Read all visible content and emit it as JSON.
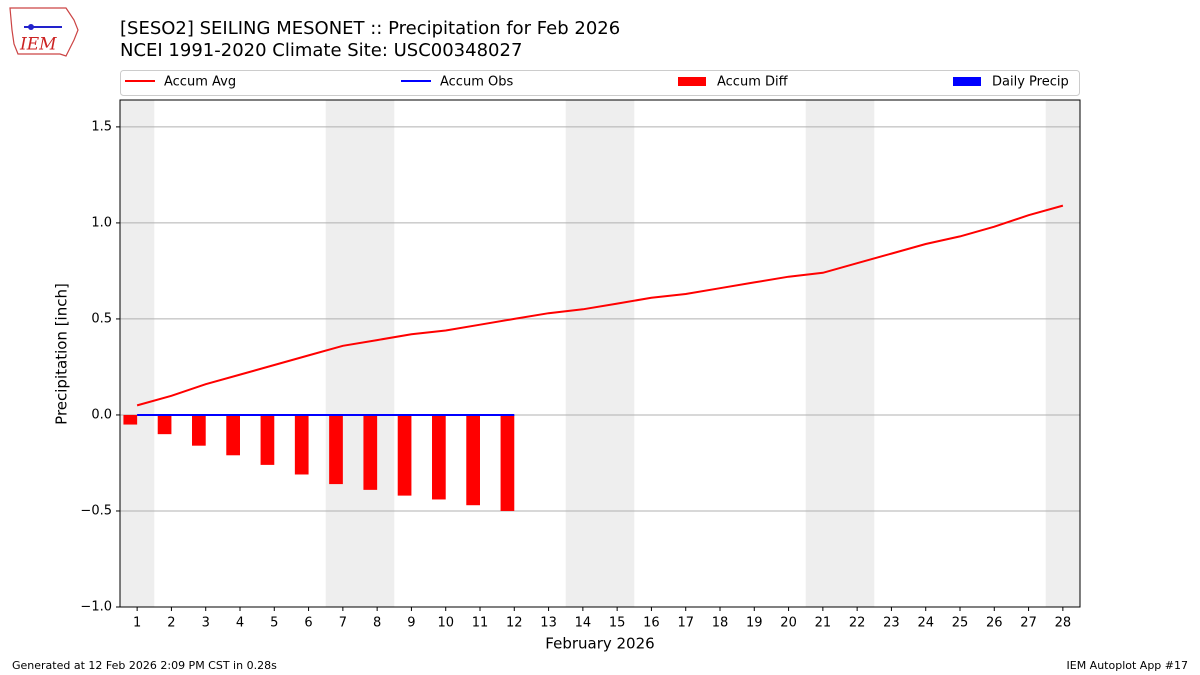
{
  "chart_data": {
    "type": "bar",
    "logo_text": "IEM",
    "title": "[SESO2] SEILING MESONET :: Precipitation for Feb 2026",
    "subtitle": "NCEI 1991-2020 Climate Site: USC00348027",
    "x_label": "February 2026",
    "y_label": "Precipitation [inch]",
    "footer_left": "Generated at 12 Feb 2026 2:09 PM CST in 0.28s",
    "footer_right": "IEM Autoplot App #17",
    "legend": "top",
    "grid": true,
    "shade_color": "#eeeeee",
    "shaded_days": [
      1,
      7,
      8,
      14,
      15,
      21,
      22,
      28
    ],
    "x": [
      1,
      2,
      3,
      4,
      5,
      6,
      7,
      8,
      9,
      10,
      11,
      12,
      13,
      14,
      15,
      16,
      17,
      18,
      19,
      20,
      21,
      22,
      23,
      24,
      25,
      26,
      27,
      28
    ],
    "xlim": [
      0.5,
      28.5
    ],
    "ylim": [
      -1.0,
      1.64
    ],
    "yticks": [
      {
        "value": -1.0,
        "label": "−1.0"
      },
      {
        "value": -0.5,
        "label": "−0.5"
      },
      {
        "value": 0.0,
        "label": "0.0"
      },
      0.5,
      {
        "value": 1.0,
        "label": "1.0"
      },
      1.5
    ],
    "series": [
      {
        "name": "Accum Avg",
        "kind": "line",
        "color": "#ff0000",
        "values": [
          0.05,
          0.1,
          0.16,
          0.21,
          0.26,
          0.31,
          0.36,
          0.39,
          0.42,
          0.44,
          0.47,
          0.5,
          0.53,
          0.55,
          0.58,
          0.61,
          0.63,
          0.66,
          0.69,
          0.72,
          0.74,
          0.79,
          0.84,
          0.89,
          0.93,
          0.98,
          1.04,
          1.09
        ]
      },
      {
        "name": "Accum Obs",
        "kind": "line",
        "color": "#0000ff",
        "values": [
          0,
          0,
          0,
          0,
          0,
          0,
          0,
          0,
          0,
          0,
          0,
          0,
          null,
          null,
          null,
          null,
          null,
          null,
          null,
          null,
          null,
          null,
          null,
          null,
          null,
          null,
          null,
          null
        ]
      },
      {
        "name": "Accum Diff",
        "kind": "bar",
        "color": "#ff0000",
        "values": [
          -0.05,
          -0.1,
          -0.16,
          -0.21,
          -0.26,
          -0.31,
          -0.36,
          -0.39,
          -0.42,
          -0.44,
          -0.47,
          -0.5,
          null,
          null,
          null,
          null,
          null,
          null,
          null,
          null,
          null,
          null,
          null,
          null,
          null,
          null,
          null,
          null
        ]
      },
      {
        "name": "Daily Precip",
        "kind": "bar",
        "color": "#0000ff",
        "values": [
          0,
          0,
          0,
          0,
          0,
          0,
          0,
          0,
          0,
          0,
          0,
          0,
          null,
          null,
          null,
          null,
          null,
          null,
          null,
          null,
          null,
          null,
          null,
          null,
          null,
          null,
          null,
          null
        ]
      }
    ]
  }
}
